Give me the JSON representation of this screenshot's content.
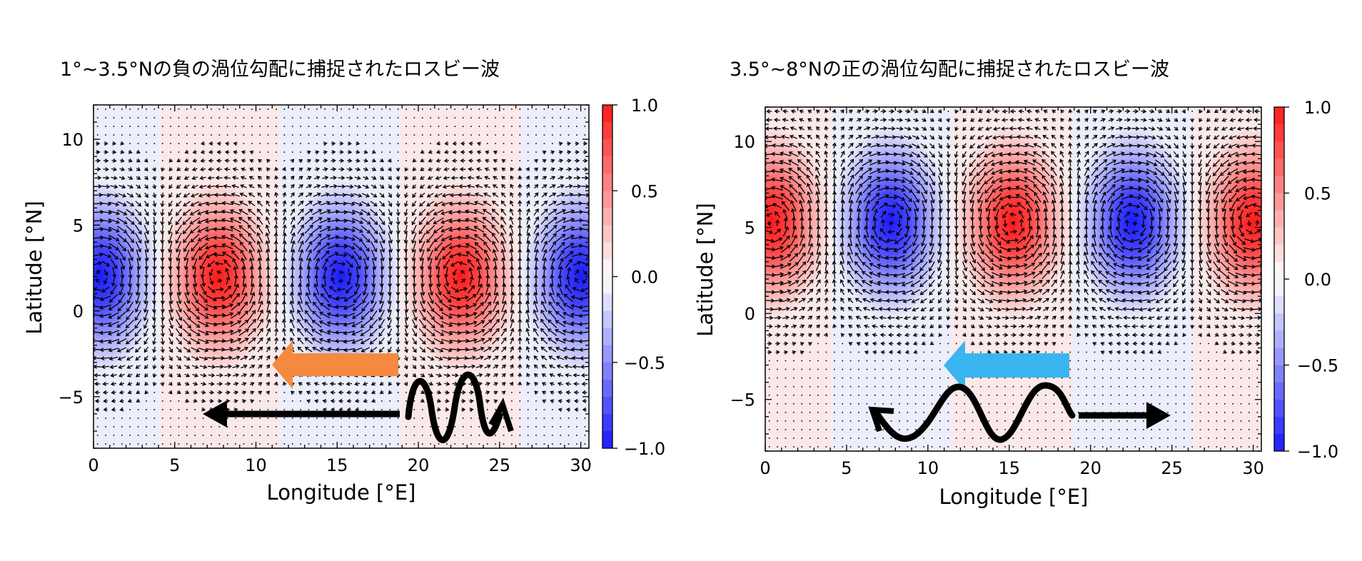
{
  "chart_data": [
    {
      "type": "heatmap",
      "title": "1°~3.5°Nの負の渦位勾配に捕捉されたロスビー波",
      "xlabel": "Longitude [°E]",
      "ylabel": "Latitude [°N]",
      "xlim": [
        0,
        30.5
      ],
      "ylim": [
        -8,
        12
      ],
      "xticks": [
        0,
        5,
        10,
        15,
        20,
        25,
        30
      ],
      "yticks": [
        -5,
        0,
        5,
        10
      ],
      "colorbar": {
        "range": [
          -1.0,
          1.0
        ],
        "ticks": [
          "1.0",
          "0.5",
          "0.0",
          "−0.5",
          "−1.0"
        ],
        "low_color": "#1a1aff",
        "mid_color": "#ffffff",
        "high_color": "#ff1a1a"
      },
      "cells": [
        {
          "center_lon": 0.4,
          "center_lat": 2.0,
          "value": -1.0
        },
        {
          "center_lon": 7.7,
          "center_lat": 2.0,
          "value": 1.0
        },
        {
          "center_lon": 15.2,
          "center_lat": 2.0,
          "value": -1.0
        },
        {
          "center_lon": 22.6,
          "center_lat": 2.0,
          "value": 1.0
        },
        {
          "center_lon": 30.0,
          "center_lat": 2.0,
          "value": -1.0
        }
      ],
      "annotations": [
        {
          "kind": "phase-propagation-arrow",
          "direction": "west",
          "color": "#f5893f"
        },
        {
          "kind": "group-velocity-arrow",
          "direction": "west",
          "color": "#000000"
        },
        {
          "kind": "wave-packet-glyph",
          "color": "#000000"
        }
      ]
    },
    {
      "type": "heatmap",
      "title": "3.5°~8°Nの正の渦位勾配に捕捉されたロスビー波",
      "xlabel": "Longitude [°E]",
      "ylabel": "Latitude [°N]",
      "xlim": [
        0,
        30.5
      ],
      "ylim": [
        -8,
        12
      ],
      "xticks": [
        0,
        5,
        10,
        15,
        20,
        25,
        30
      ],
      "yticks": [
        -5,
        0,
        5,
        10
      ],
      "colorbar": {
        "range": [
          -1.0,
          1.0
        ],
        "ticks": [
          "1.0",
          "0.5",
          "0.0",
          "−0.5",
          "−1.0"
        ],
        "low_color": "#1a1aff",
        "mid_color": "#ffffff",
        "high_color": "#ff1a1a"
      },
      "cells": [
        {
          "center_lon": 0.4,
          "center_lat": 5.3,
          "value": 1.0
        },
        {
          "center_lon": 7.7,
          "center_lat": 5.3,
          "value": -1.0
        },
        {
          "center_lon": 15.2,
          "center_lat": 5.3,
          "value": 1.0
        },
        {
          "center_lon": 22.6,
          "center_lat": 5.3,
          "value": -1.0
        },
        {
          "center_lon": 30.0,
          "center_lat": 5.3,
          "value": 1.0
        }
      ],
      "annotations": [
        {
          "kind": "phase-propagation-arrow",
          "direction": "west",
          "color": "#39b5f0"
        },
        {
          "kind": "group-velocity-arrow",
          "direction": "east",
          "color": "#000000"
        },
        {
          "kind": "wave-packet-glyph",
          "color": "#000000"
        }
      ]
    }
  ]
}
